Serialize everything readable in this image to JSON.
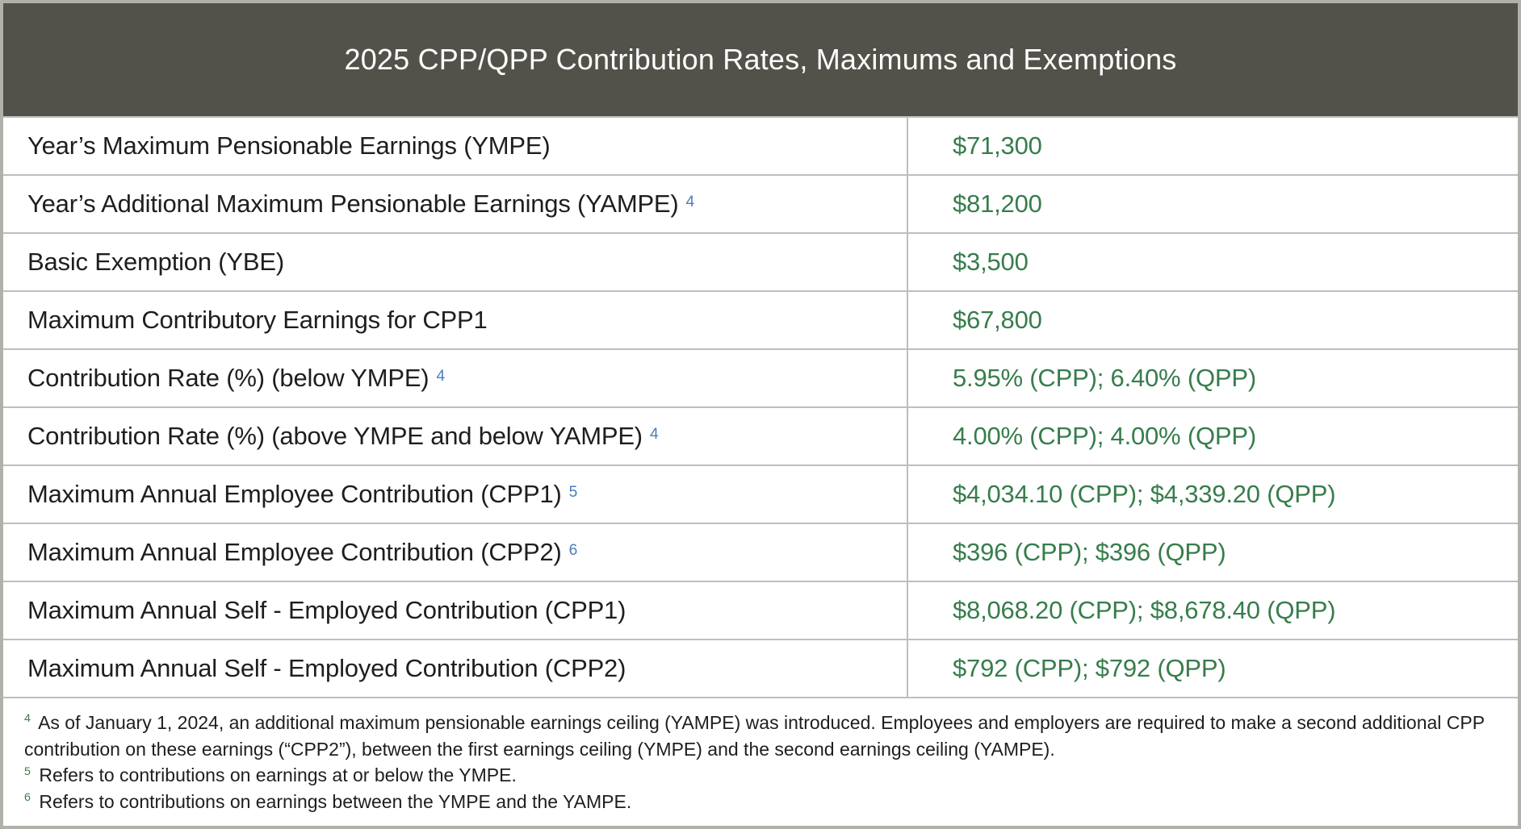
{
  "header": {
    "title": "2025 CPP/QPP Contribution Rates, Maximums and Exemptions"
  },
  "colors": {
    "header_bg": "#53524a",
    "value_green": "#377d4c",
    "superscript_blue": "#4a7ebb",
    "footnote_sup_green": "#377d4c",
    "border_gray": "#bebebe"
  },
  "table": {
    "rows": [
      {
        "label": "Year’s Maximum Pensionable Earnings (YMPE)",
        "sup": "",
        "value": "$71,300"
      },
      {
        "label": "Year’s Additional Maximum Pensionable Earnings (YAMPE)",
        "sup": "4",
        "value": "$81,200"
      },
      {
        "label": "Basic Exemption (YBE)",
        "sup": "",
        "value": "$3,500"
      },
      {
        "label": "Maximum Contributory Earnings for CPP1",
        "sup": "",
        "value": "$67,800"
      },
      {
        "label": "Contribution Rate (%) (below YMPE)",
        "sup": "4",
        "value": "5.95% (CPP); 6.40% (QPP)"
      },
      {
        "label": "Contribution Rate (%) (above YMPE and below YAMPE)",
        "sup": "4",
        "value": "4.00% (CPP); 4.00% (QPP)"
      },
      {
        "label": "Maximum Annual Employee Contribution (CPP1)",
        "sup": "5",
        "value": "$4,034.10 (CPP); $4,339.20 (QPP)"
      },
      {
        "label": "Maximum Annual Employee Contribution (CPP2)",
        "sup": "6",
        "value": "$396 (CPP); $396 (QPP)"
      },
      {
        "label": "Maximum Annual Self - Employed Contribution (CPP1)",
        "sup": "",
        "value": "$8,068.20 (CPP); $8,678.40 (QPP)"
      },
      {
        "label": "Maximum Annual Self - Employed Contribution (CPP2)",
        "sup": "",
        "value": "$792 (CPP); $792 (QPP)"
      }
    ]
  },
  "footnotes": [
    {
      "sup": "4",
      "text": "As of January 1, 2024, an additional maximum pensionable earnings ceiling (YAMPE) was introduced. Employees and employers are required to make a second additional CPP contribution on these earnings (“CPP2”), between the first earnings ceiling (YMPE) and the second earnings ceiling (YAMPE)."
    },
    {
      "sup": "5",
      "text": "Refers to contributions on earnings at or below the YMPE."
    },
    {
      "sup": "6",
      "text": "Refers to contributions on earnings between the YMPE and the YAMPE."
    }
  ]
}
